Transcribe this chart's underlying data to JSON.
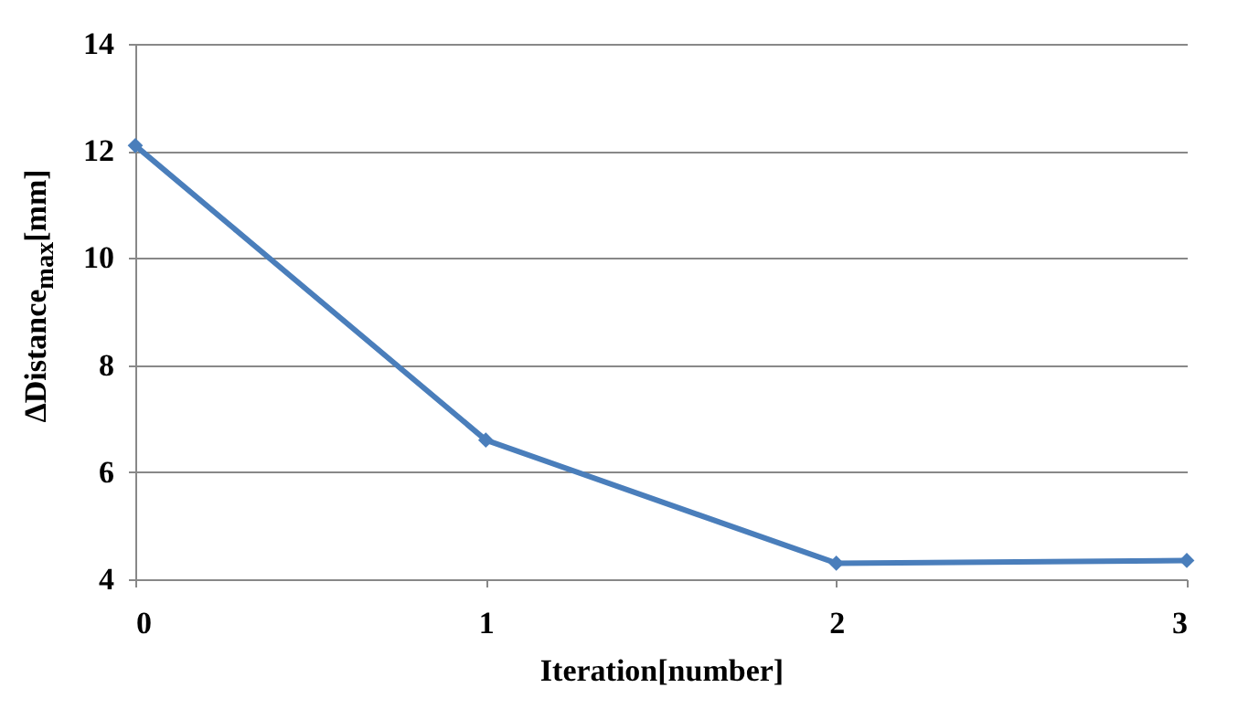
{
  "chart_data": {
    "type": "line",
    "xlabel": "Iteration[number]",
    "ylabel": "ΔDistance$_{max}$[mm]",
    "x": [
      0,
      1,
      2,
      3
    ],
    "series": [
      {
        "color": "#4a7ebb",
        "values": [
          12.1,
          6.6,
          4.3,
          4.35
        ]
      }
    ],
    "xlim": [
      0,
      3
    ],
    "xticks": [
      0,
      1,
      2,
      3
    ],
    "ylim": [
      4,
      14
    ],
    "yticks": [
      4,
      6,
      8,
      10,
      12,
      14
    ],
    "grid": "y",
    "marker": "diamond",
    "line_style": "solid"
  }
}
